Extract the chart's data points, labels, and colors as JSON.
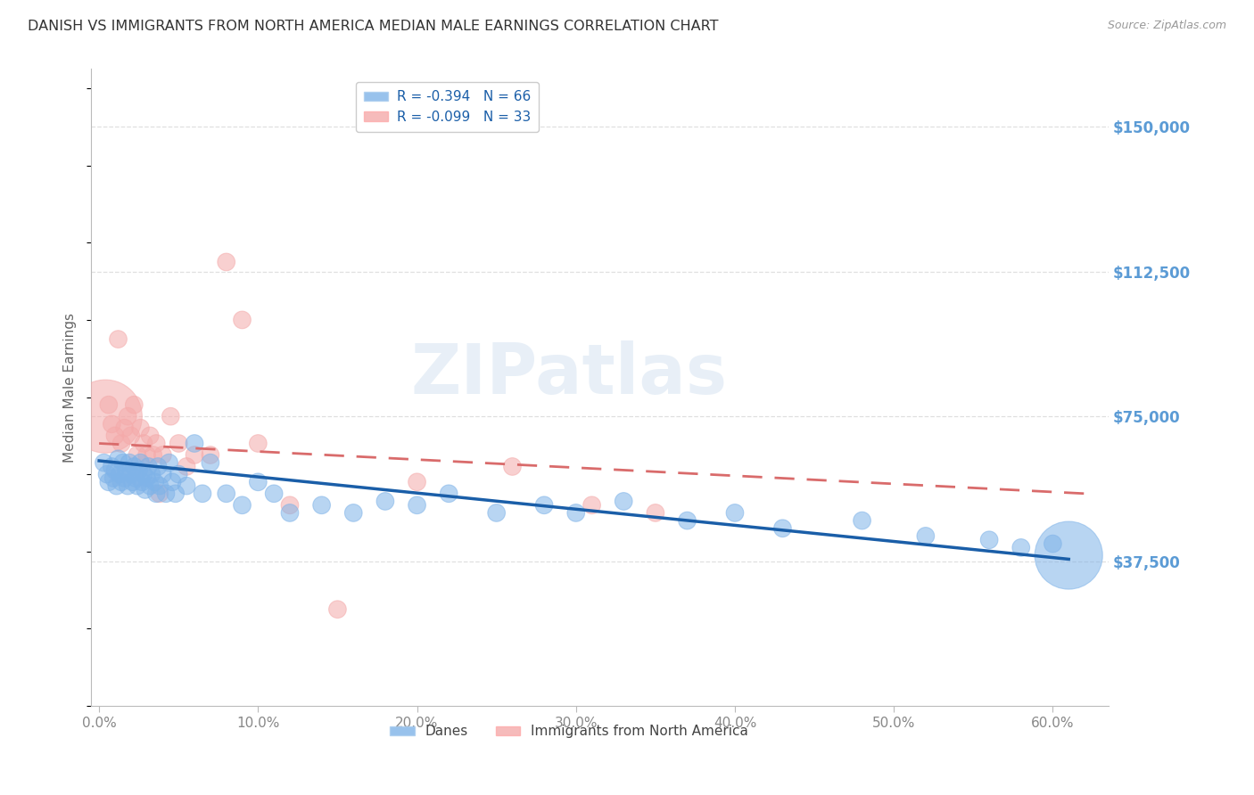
{
  "title": "DANISH VS IMMIGRANTS FROM NORTH AMERICA MEDIAN MALE EARNINGS CORRELATION CHART",
  "source": "Source: ZipAtlas.com",
  "ylabel": "Median Male Earnings",
  "xlabel_ticks": [
    "0.0%",
    "10.0%",
    "20.0%",
    "30.0%",
    "40.0%",
    "50.0%",
    "60.0%"
  ],
  "ytick_labels": [
    "$37,500",
    "$75,000",
    "$112,500",
    "$150,000"
  ],
  "ytick_values": [
    37500,
    75000,
    112500,
    150000
  ],
  "ymin": 0,
  "ymax": 165000,
  "xmin": -0.005,
  "xmax": 0.635,
  "legend_r1": "R = -0.394",
  "legend_n1": "N = 66",
  "legend_r2": "R = -0.099",
  "legend_n2": "N = 33",
  "legend_label1": "Danes",
  "legend_label2": "Immigrants from North America",
  "blue_color": "#7FB3E8",
  "pink_color": "#F4AAAA",
  "trendline_blue": "#1A5EA8",
  "trendline_pink": "#D96B6B",
  "grid_color": "#D8D8D8",
  "title_color": "#333333",
  "axis_label_color": "#5B9BD5",
  "watermark": "ZIPatlas",
  "danes_x": [
    0.003,
    0.005,
    0.006,
    0.008,
    0.009,
    0.01,
    0.011,
    0.012,
    0.013,
    0.014,
    0.015,
    0.016,
    0.017,
    0.018,
    0.019,
    0.02,
    0.021,
    0.022,
    0.023,
    0.024,
    0.025,
    0.026,
    0.027,
    0.028,
    0.029,
    0.03,
    0.031,
    0.032,
    0.033,
    0.035,
    0.036,
    0.037,
    0.038,
    0.04,
    0.042,
    0.044,
    0.046,
    0.048,
    0.05,
    0.055,
    0.06,
    0.065,
    0.07,
    0.08,
    0.09,
    0.1,
    0.11,
    0.12,
    0.14,
    0.16,
    0.18,
    0.2,
    0.22,
    0.25,
    0.28,
    0.3,
    0.33,
    0.37,
    0.4,
    0.43,
    0.48,
    0.52,
    0.56,
    0.58,
    0.6,
    0.61
  ],
  "danes_y": [
    63000,
    60000,
    58000,
    62000,
    59000,
    61000,
    57000,
    64000,
    60000,
    58000,
    63000,
    59000,
    61000,
    57000,
    63000,
    60000,
    58000,
    62000,
    59000,
    57000,
    61000,
    63000,
    58000,
    60000,
    56000,
    59000,
    62000,
    57000,
    60000,
    58000,
    55000,
    62000,
    57000,
    60000,
    55000,
    63000,
    58000,
    55000,
    60000,
    57000,
    68000,
    55000,
    63000,
    55000,
    52000,
    58000,
    55000,
    50000,
    52000,
    50000,
    53000,
    52000,
    55000,
    50000,
    52000,
    50000,
    53000,
    48000,
    50000,
    46000,
    48000,
    44000,
    43000,
    41000,
    42000,
    39000
  ],
  "immigrants_x": [
    0.004,
    0.006,
    0.008,
    0.01,
    0.012,
    0.014,
    0.016,
    0.018,
    0.02,
    0.022,
    0.024,
    0.026,
    0.028,
    0.03,
    0.032,
    0.034,
    0.036,
    0.038,
    0.04,
    0.045,
    0.05,
    0.055,
    0.06,
    0.07,
    0.08,
    0.09,
    0.1,
    0.12,
    0.15,
    0.2,
    0.26,
    0.31,
    0.35
  ],
  "immigrants_y": [
    75000,
    78000,
    73000,
    70000,
    95000,
    68000,
    72000,
    75000,
    70000,
    78000,
    65000,
    72000,
    68000,
    65000,
    70000,
    65000,
    68000,
    55000,
    65000,
    75000,
    68000,
    62000,
    65000,
    65000,
    115000,
    100000,
    68000,
    52000,
    25000,
    58000,
    62000,
    52000,
    50000
  ],
  "danes_sizes": [
    200,
    200,
    200,
    200,
    200,
    200,
    200,
    200,
    200,
    200,
    200,
    200,
    200,
    200,
    200,
    200,
    200,
    200,
    200,
    200,
    200,
    200,
    200,
    200,
    200,
    200,
    200,
    200,
    200,
    200,
    200,
    200,
    200,
    200,
    200,
    200,
    200,
    200,
    200,
    200,
    200,
    200,
    200,
    200,
    200,
    200,
    200,
    200,
    200,
    200,
    200,
    200,
    200,
    200,
    200,
    200,
    200,
    200,
    200,
    200,
    200,
    200,
    200,
    200,
    200,
    3000
  ],
  "immigrants_sizes": [
    3500,
    200,
    200,
    200,
    200,
    200,
    200,
    200,
    200,
    200,
    200,
    200,
    200,
    200,
    200,
    200,
    200,
    200,
    200,
    200,
    200,
    200,
    200,
    200,
    200,
    200,
    200,
    200,
    200,
    200,
    200,
    200,
    200
  ]
}
